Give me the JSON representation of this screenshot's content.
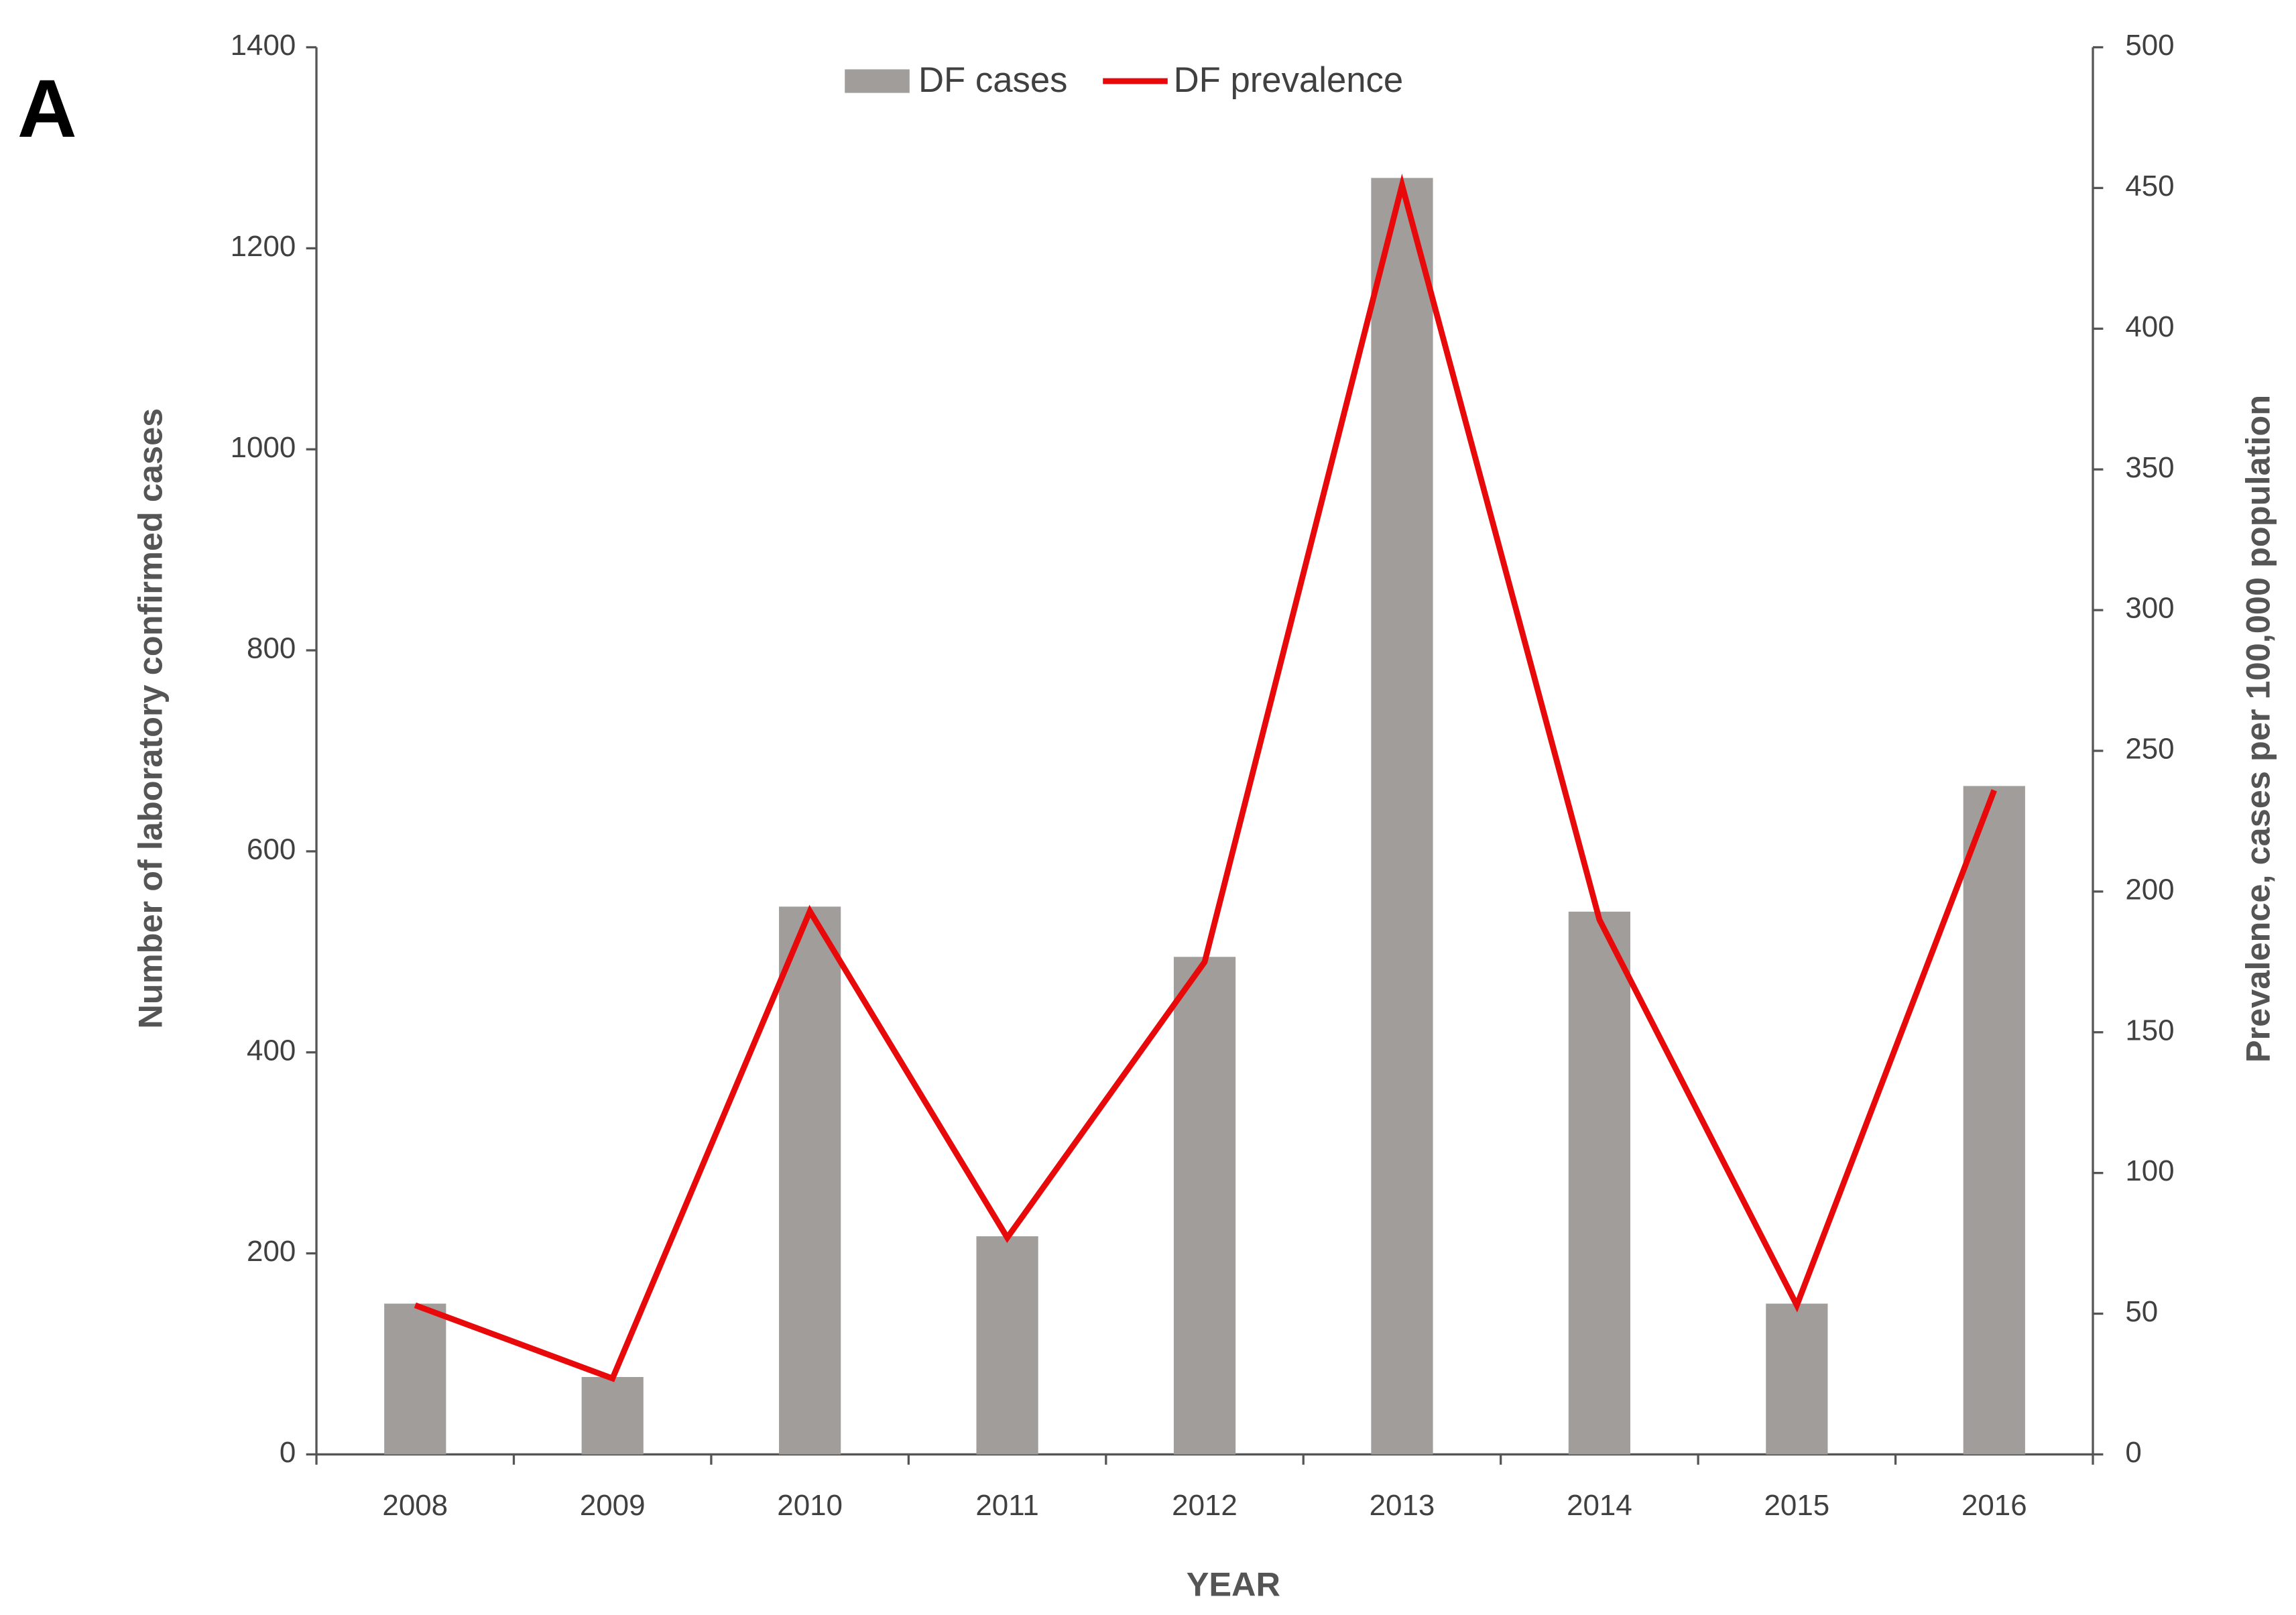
{
  "panel_label": "A",
  "chart_data": {
    "type": "bar",
    "x_label": "YEAR",
    "y_label": "Number of laboratory confirmed cases",
    "y2_label": "Prevalence, cases per 100,000 population",
    "categories": [
      "2008",
      "2009",
      "2010",
      "2011",
      "2012",
      "2013",
      "2014",
      "2015",
      "2016"
    ],
    "series": [
      {
        "name": "DF cases",
        "type": "bar",
        "color": "#a09d9a",
        "values": [
          150,
          77,
          545,
          217,
          495,
          1270,
          540,
          150,
          665
        ]
      },
      {
        "name": "DF prevalence",
        "type": "line",
        "axis": "y2",
        "color": "#e8090b",
        "values": [
          53,
          27,
          193,
          77,
          175,
          451,
          190,
          53,
          236
        ]
      }
    ],
    "ylim": [
      0,
      1400
    ],
    "yticks": [
      0,
      200,
      400,
      600,
      800,
      1000,
      1200,
      1400
    ],
    "y2lim": [
      0,
      500
    ],
    "y2ticks": [
      0,
      50,
      100,
      150,
      200,
      250,
      300,
      350,
      400,
      450,
      500
    ],
    "legend": "top",
    "grid": false
  }
}
